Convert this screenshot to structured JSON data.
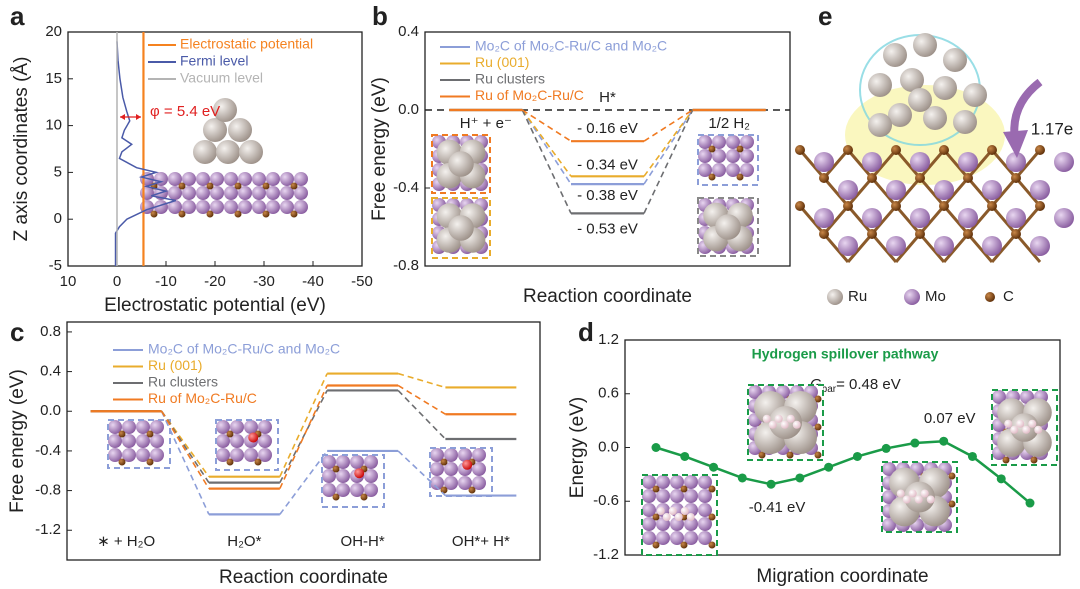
{
  "chart_data": [
    {
      "type": "line",
      "panel": "a",
      "x_label": "Electrostatic potential (eV)",
      "y_label": "Z axis coordinates (Å)",
      "xlim": [
        10,
        -50
      ],
      "xticks": [
        10,
        0,
        -10,
        -20,
        -30,
        -40,
        -50
      ],
      "ylim": [
        -5,
        20
      ],
      "yticks": [
        -5,
        0,
        5,
        10,
        15,
        20
      ],
      "annotation": "φ = 5.4 eV",
      "series": [
        {
          "name": "Electrostatic potential",
          "color": "#f5821f",
          "x": [
            -5.4,
            -5.4
          ],
          "values": [
            -5,
            20
          ]
        },
        {
          "name": "Fermi level",
          "color": "#4a5aa8",
          "x": [
            0,
            -0.2,
            -0.6,
            -1.2,
            -2,
            -2.6,
            -1.5,
            -1,
            -3,
            -1,
            -0.5,
            -4,
            -8,
            -5,
            -9,
            -6,
            -10,
            -7,
            -12,
            -6,
            -2,
            -0.5,
            0.3,
            0.3
          ],
          "values": [
            19,
            17,
            15,
            13,
            11.5,
            10.5,
            9.5,
            8.7,
            8,
            7.2,
            6.5,
            5.5,
            5,
            4.5,
            4,
            3.5,
            3,
            2.5,
            2,
            1,
            0,
            -0.8,
            -1.5,
            -5
          ]
        },
        {
          "name": "Vacuum level",
          "color": "#b4b4b4",
          "x": [
            0,
            0
          ],
          "values": [
            -5,
            20
          ]
        }
      ]
    },
    {
      "type": "level",
      "panel": "b",
      "x_label": "Reaction coordinate",
      "y_label": "Free energy (eV)",
      "ylim": [
        -0.8,
        0.4
      ],
      "yticks": [
        -0.8,
        -0.4,
        {
          "value": 0,
          "label": "0.0"
        },
        0.4
      ],
      "zero_line": true,
      "categories": [
        "H⁺ + e⁻",
        "H*",
        "1/2 H₂"
      ],
      "series": [
        {
          "name": "Mo₂C of Mo₂C-Ru/C and Mo₂C",
          "color": "#8c9ed8",
          "values": [
            0,
            -0.38,
            0
          ],
          "value_labels": [
            null,
            "- 0.38 eV",
            null
          ]
        },
        {
          "name": "Ru (001)",
          "color": "#e9ac2c",
          "values": [
            0,
            -0.34,
            0
          ],
          "value_labels": [
            null,
            "- 0.34 eV",
            null
          ]
        },
        {
          "name": "Ru clusters",
          "color": "#6d6e71",
          "values": [
            0,
            -0.53,
            0
          ],
          "value_labels": [
            null,
            "- 0.53 eV",
            null
          ]
        },
        {
          "name": "Ru of Mo₂C-Ru/C",
          "color": "#f07a22",
          "values": [
            0,
            -0.16,
            0
          ],
          "value_labels": [
            null,
            "- 0.16 eV",
            null
          ]
        }
      ]
    },
    {
      "type": "level",
      "panel": "c",
      "x_label": "Reaction coordinate",
      "y_label": "Free energy (eV)",
      "ylim": [
        -1.5,
        0.9
      ],
      "yticks": [
        -1.2,
        -0.8,
        -0.4,
        {
          "value": 0,
          "label": "0.0"
        },
        0.4,
        0.8
      ],
      "zero_line": false,
      "categories": [
        "∗ + H₂O",
        "H₂O*",
        "OH-H*",
        "OH*+ H*"
      ],
      "series": [
        {
          "name": "Mo₂C of Mo₂C-Ru/C and Mo₂C",
          "color": "#8c9ed8",
          "values": [
            0,
            -1.04,
            -0.4,
            -0.85
          ]
        },
        {
          "name": "Ru (001)",
          "color": "#e9ac2c",
          "values": [
            0,
            -0.66,
            0.38,
            0.24
          ]
        },
        {
          "name": "Ru clusters",
          "color": "#6d6e71",
          "values": [
            0,
            -0.72,
            0.21,
            -0.28
          ]
        },
        {
          "name": "Ru of Mo₂C-Ru/C",
          "color": "#f07a22",
          "values": [
            0,
            -0.78,
            0.26,
            -0.03
          ]
        }
      ]
    },
    {
      "type": "line",
      "panel": "d",
      "x_label": "Migration coordinate",
      "y_label": "Energy (eV)",
      "title": "Hydrogen spillover pathway",
      "barrier": {
        "symbol": "G",
        "subscript": "bar",
        "text": "= 0.48 eV"
      },
      "ylim": [
        -1.2,
        1.2
      ],
      "yticks": [
        -1.2,
        -0.6,
        {
          "value": 0,
          "label": "0.0"
        },
        0.6,
        1.2
      ],
      "series": [
        {
          "name": null,
          "color": "#1a9b48",
          "values": [
            0,
            -0.1,
            -0.22,
            -0.34,
            -0.41,
            -0.34,
            -0.22,
            -0.1,
            -0.01,
            0.05,
            0.07,
            -0.1,
            -0.35,
            -0.62
          ],
          "value_labels": [
            null,
            null,
            null,
            null,
            "-0.41 eV",
            null,
            null,
            null,
            null,
            null,
            "0.07 eV",
            null,
            null,
            null
          ]
        }
      ]
    }
  ],
  "structure": {
    "panel": "e",
    "charge_transfer": "1.17e",
    "legend": [
      "Ru",
      "Mo",
      "C"
    ]
  }
}
